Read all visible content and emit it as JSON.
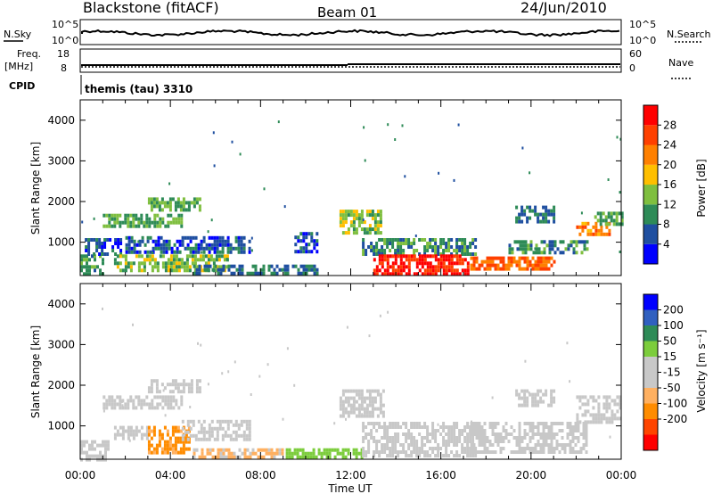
{
  "header": {
    "station": "Blackstone (fitACF)",
    "beam": "Beam 01",
    "date": "24/Jun/2010"
  },
  "status_panels": {
    "nsky_label": "N.Sky",
    "nsky_ticks": [
      "10^5",
      "10^0"
    ],
    "nsearch_label": "N.Search",
    "nsearch_ticks": [
      "10^5",
      "10^0"
    ],
    "freq_label_1": "Freq.",
    "freq_label_2": "[MHz]",
    "freq_ticks": [
      "18",
      "8"
    ],
    "nave_label": "Nave",
    "nave_ticks": [
      "60",
      "0"
    ],
    "cpid_label": "CPID",
    "cpid_text": "themis (tau) 3310"
  },
  "colors": {
    "power": [
      "#0000ff",
      "#1f4fa0",
      "#2e8b57",
      "#7fbf3f",
      "#ffbf00",
      "#ff8000",
      "#ff4000",
      "#ff0000"
    ],
    "velocity": [
      "#ff0000",
      "#ff4500",
      "#ff8c00",
      "#ffb060",
      "#c8c8c8",
      "#c8c8c8",
      "#7ccd3c",
      "#2e8b57",
      "#3060c0",
      "#0000ff"
    ],
    "velocity_ground": "#c8c8c8"
  },
  "chart_data": [
    {
      "type": "heatmap",
      "title": "Power",
      "ylabel": "Slant Range [km]",
      "xlabel": "",
      "x_range_hours": [
        0,
        24
      ],
      "ylim": [
        180,
        4500
      ],
      "y_ticks": [
        1000,
        2000,
        3000,
        4000
      ],
      "x_tick_labels": [
        "00:00",
        "04:00",
        "08:00",
        "12:00",
        "16:00",
        "20:00",
        "00:00"
      ],
      "colorbar": {
        "label": "Power [dB]",
        "ticks": [
          4,
          8,
          12,
          16,
          20,
          24,
          28
        ],
        "range": [
          0,
          32
        ]
      },
      "regions": [
        {
          "t0": 0.0,
          "t1": 1.0,
          "r0": 180,
          "r1": 700,
          "value": 10
        },
        {
          "t0": 0.2,
          "t1": 1.8,
          "r0": 700,
          "r1": 1100,
          "value": 6
        },
        {
          "t0": 1.0,
          "t1": 4.5,
          "r0": 1400,
          "r1": 1700,
          "value": 12
        },
        {
          "t0": 3.0,
          "t1": 5.3,
          "r0": 1800,
          "r1": 2100,
          "value": 12
        },
        {
          "t0": 1.5,
          "t1": 6.5,
          "r0": 300,
          "r1": 700,
          "value": 14
        },
        {
          "t0": 2.0,
          "t1": 7.5,
          "r0": 750,
          "r1": 1150,
          "value": 6
        },
        {
          "t0": 5.0,
          "t1": 10.5,
          "r0": 250,
          "r1": 450,
          "value": 8
        },
        {
          "t0": 9.5,
          "t1": 10.5,
          "r0": 800,
          "r1": 1250,
          "value": 6
        },
        {
          "t0": 11.5,
          "t1": 13.3,
          "r0": 1250,
          "r1": 1800,
          "value": 14
        },
        {
          "t0": 12.5,
          "t1": 17.5,
          "r0": 700,
          "r1": 1100,
          "value": 10
        },
        {
          "t0": 13.0,
          "t1": 17.2,
          "r0": 250,
          "r1": 700,
          "value": 29
        },
        {
          "t0": 17.3,
          "t1": 21.0,
          "r0": 350,
          "r1": 650,
          "value": 24
        },
        {
          "t0": 19.0,
          "t1": 22.5,
          "r0": 700,
          "r1": 1050,
          "value": 10
        },
        {
          "t0": 19.3,
          "t1": 21.0,
          "r0": 1500,
          "r1": 1900,
          "value": 8
        },
        {
          "t0": 22.0,
          "t1": 23.5,
          "r0": 1150,
          "r1": 1500,
          "value": 22
        },
        {
          "t0": 22.8,
          "t1": 24.0,
          "r0": 1400,
          "r1": 1750,
          "value": 12
        }
      ]
    },
    {
      "type": "heatmap",
      "title": "Velocity",
      "ylabel": "Slant Range [km]",
      "xlabel": "Time UT",
      "x_range_hours": [
        0,
        24
      ],
      "ylim": [
        180,
        4500
      ],
      "y_ticks": [
        1000,
        2000,
        3000,
        4000
      ],
      "x_tick_labels": [
        "00:00",
        "04:00",
        "08:00",
        "12:00",
        "16:00",
        "20:00",
        "00:00"
      ],
      "colorbar": {
        "label": "Velocity [m s⁻¹]",
        "ticks": [
          "200",
          "100",
          "50",
          "15",
          "-15",
          "-50",
          "-100",
          "-200"
        ]
      },
      "regions": [
        {
          "t0": 0.0,
          "t1": 1.2,
          "r0": 180,
          "r1": 650,
          "value": 0
        },
        {
          "t0": 1.0,
          "t1": 4.5,
          "r0": 1400,
          "r1": 1750,
          "value": 0
        },
        {
          "t0": 3.0,
          "t1": 5.3,
          "r0": 1800,
          "r1": 2150,
          "value": 0
        },
        {
          "t0": 1.5,
          "t1": 3.0,
          "r0": 650,
          "r1": 1000,
          "value": 0
        },
        {
          "t0": 3.0,
          "t1": 4.8,
          "r0": 350,
          "r1": 1000,
          "value": -60
        },
        {
          "t0": 4.5,
          "t1": 7.5,
          "r0": 650,
          "r1": 1150,
          "value": 0
        },
        {
          "t0": 5.0,
          "t1": 9.0,
          "r0": 250,
          "r1": 450,
          "value": -20
        },
        {
          "t0": 9.0,
          "t1": 12.5,
          "r0": 200,
          "r1": 450,
          "value": 30
        },
        {
          "t0": 11.5,
          "t1": 13.5,
          "r0": 1250,
          "r1": 1900,
          "value": 0
        },
        {
          "t0": 12.5,
          "t1": 17.5,
          "r0": 250,
          "r1": 1100,
          "value": 0
        },
        {
          "t0": 17.3,
          "t1": 22.5,
          "r0": 350,
          "r1": 1100,
          "value": 0
        },
        {
          "t0": 19.3,
          "t1": 21.0,
          "r0": 1500,
          "r1": 1900,
          "value": 0
        },
        {
          "t0": 22.0,
          "t1": 24.0,
          "r0": 1100,
          "r1": 1750,
          "value": 0
        }
      ]
    }
  ]
}
